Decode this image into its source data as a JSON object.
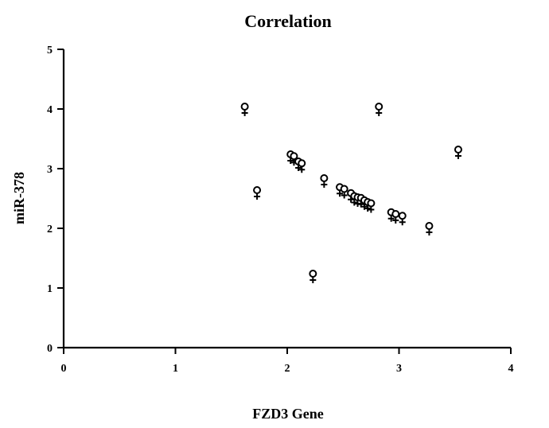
{
  "chart_data": {
    "type": "scatter",
    "title": "Correlation",
    "xlabel": "FZD3 Gene",
    "ylabel": "miR-378",
    "xlim": [
      0,
      4
    ],
    "ylim": [
      0,
      5
    ],
    "xticks": [
      "0",
      "1",
      "2",
      "3",
      "4"
    ],
    "yticks": [
      "0",
      "1",
      "2",
      "3",
      "4",
      "5"
    ],
    "grid": false,
    "marker": "female-symbol",
    "points": [
      {
        "x": 1.62,
        "y": 4.0
      },
      {
        "x": 1.73,
        "y": 2.6
      },
      {
        "x": 2.03,
        "y": 3.2
      },
      {
        "x": 2.06,
        "y": 3.17
      },
      {
        "x": 2.1,
        "y": 3.08
      },
      {
        "x": 2.13,
        "y": 3.05
      },
      {
        "x": 2.23,
        "y": 1.2
      },
      {
        "x": 2.33,
        "y": 2.8
      },
      {
        "x": 2.47,
        "y": 2.65
      },
      {
        "x": 2.51,
        "y": 2.62
      },
      {
        "x": 2.57,
        "y": 2.55
      },
      {
        "x": 2.6,
        "y": 2.5
      },
      {
        "x": 2.63,
        "y": 2.48
      },
      {
        "x": 2.66,
        "y": 2.47
      },
      {
        "x": 2.69,
        "y": 2.43
      },
      {
        "x": 2.72,
        "y": 2.4
      },
      {
        "x": 2.75,
        "y": 2.38
      },
      {
        "x": 2.82,
        "y": 4.0
      },
      {
        "x": 2.93,
        "y": 2.23
      },
      {
        "x": 2.97,
        "y": 2.2
      },
      {
        "x": 3.03,
        "y": 2.17
      },
      {
        "x": 3.27,
        "y": 2.0
      },
      {
        "x": 3.53,
        "y": 3.28
      }
    ]
  }
}
